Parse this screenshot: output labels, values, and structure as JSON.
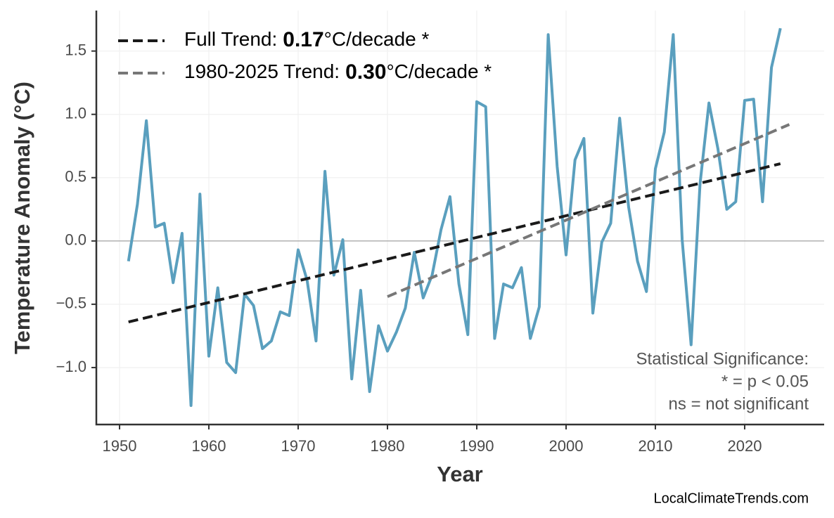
{
  "chart_data": {
    "type": "line",
    "xlabel": "Year",
    "ylabel": "Temperature Anomaly (°C)",
    "x": [
      1951,
      1952,
      1953,
      1954,
      1955,
      1956,
      1957,
      1958,
      1959,
      1960,
      1961,
      1962,
      1963,
      1964,
      1965,
      1966,
      1967,
      1968,
      1969,
      1970,
      1971,
      1972,
      1973,
      1974,
      1975,
      1976,
      1977,
      1978,
      1979,
      1980,
      1981,
      1982,
      1983,
      1984,
      1985,
      1986,
      1987,
      1988,
      1989,
      1990,
      1991,
      1992,
      1993,
      1994,
      1995,
      1996,
      1997,
      1998,
      1999,
      2000,
      2001,
      2002,
      2003,
      2004,
      2005,
      2006,
      2007,
      2008,
      2009,
      2010,
      2011,
      2012,
      2013,
      2014,
      2015,
      2016,
      2017,
      2018,
      2019,
      2020,
      2021,
      2022,
      2023,
      2024
    ],
    "series": [
      {
        "color": "#5a9fbe",
        "values": [
          -0.16,
          0.29,
          0.95,
          0.11,
          0.14,
          -0.33,
          0.06,
          -1.3,
          0.37,
          -0.91,
          -0.37,
          -0.96,
          -1.04,
          -0.42,
          -0.51,
          -0.85,
          -0.79,
          -0.56,
          -0.59,
          -0.07,
          -0.31,
          -0.79,
          0.55,
          -0.27,
          0.01,
          -1.09,
          -0.39,
          -1.19,
          -0.67,
          -0.87,
          -0.72,
          -0.53,
          -0.09,
          -0.45,
          -0.27,
          0.09,
          0.35,
          -0.34,
          -0.74,
          1.1,
          1.06,
          -0.77,
          -0.34,
          -0.37,
          -0.21,
          -0.77,
          -0.52,
          1.63,
          0.59,
          -0.11,
          0.64,
          0.81,
          -0.57,
          -0.01,
          0.14,
          0.97,
          0.27,
          -0.16,
          -0.4,
          0.57,
          0.86,
          1.63,
          0.01,
          -0.82,
          0.45,
          1.09,
          0.73,
          0.25,
          0.31,
          1.11,
          1.12,
          0.31,
          1.37,
          1.68
        ]
      }
    ],
    "trends": [
      {
        "label": "Full Trend:",
        "rate": "0.17",
        "unit": "°C/decade *",
        "color": "#1a1a1a",
        "x": [
          1951,
          2024
        ],
        "values": [
          -0.64,
          0.61
        ]
      },
      {
        "label": "1980-2025 Trend:",
        "rate": "0.30",
        "unit": "°C/decade *",
        "color": "#777777",
        "x": [
          1980,
          2025
        ],
        "values": [
          -0.44,
          0.92
        ]
      }
    ],
    "xlim": [
      1947.4,
      2028.9
    ],
    "ylim": [
      -1.45,
      1.82
    ],
    "xticks": [
      1950,
      1960,
      1970,
      1980,
      1990,
      2000,
      2010,
      2020
    ],
    "yticks": [
      {
        "value": -1.0,
        "label": "−1.0"
      },
      {
        "value": -0.5,
        "label": "−0.5"
      },
      {
        "value": 0.0,
        "label": "0.0"
      },
      {
        "value": 0.5,
        "label": "0.5"
      },
      {
        "value": 1.0,
        "label": "1.0"
      },
      {
        "value": 1.5,
        "label": "1.5"
      }
    ],
    "grid": true,
    "annotation": [
      "Statistical Significance:",
      "* = p < 0.05",
      "ns = not significant"
    ],
    "source": "LocalClimateTrends.com"
  }
}
